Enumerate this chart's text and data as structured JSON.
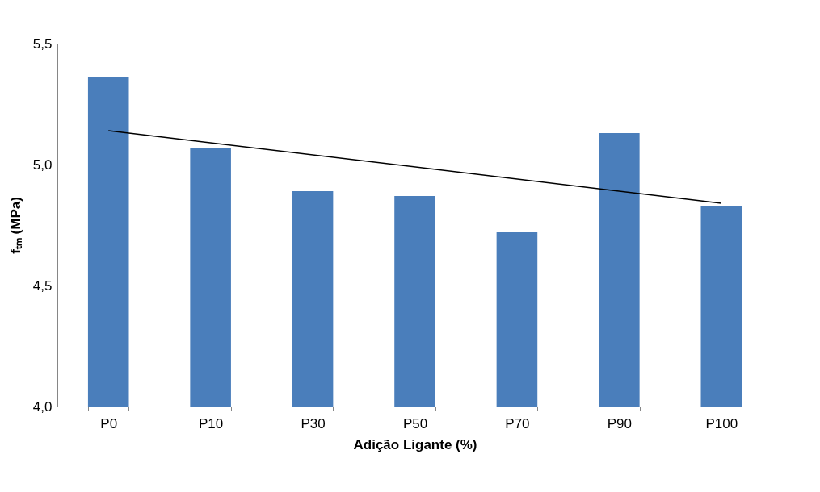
{
  "chart_data": {
    "type": "bar",
    "xlabel": "Adição Ligante (%)",
    "ylabel": "fₜₘ (MPa)",
    "categories": [
      "P0",
      "P10",
      "P30",
      "P50",
      "P70",
      "P90",
      "P100"
    ],
    "series": [
      {
        "color": "#4a7ebb",
        "values": [
          5.36,
          5.07,
          4.89,
          4.87,
          4.72,
          5.13,
          4.83
        ]
      },
      {
        "type": "line",
        "color": "#000000",
        "x": [
          "P0",
          "P100"
        ],
        "values": [
          5.14,
          4.84
        ]
      }
    ],
    "ylim": [
      4.0,
      5.5
    ],
    "yticks": [
      {
        "value": 4.0,
        "label": "4,0"
      },
      {
        "value": 4.5,
        "label": "4,5"
      },
      {
        "value": 5.0,
        "label": "5,0"
      },
      {
        "value": 5.5,
        "label": "5,5"
      }
    ],
    "grid": "y"
  }
}
